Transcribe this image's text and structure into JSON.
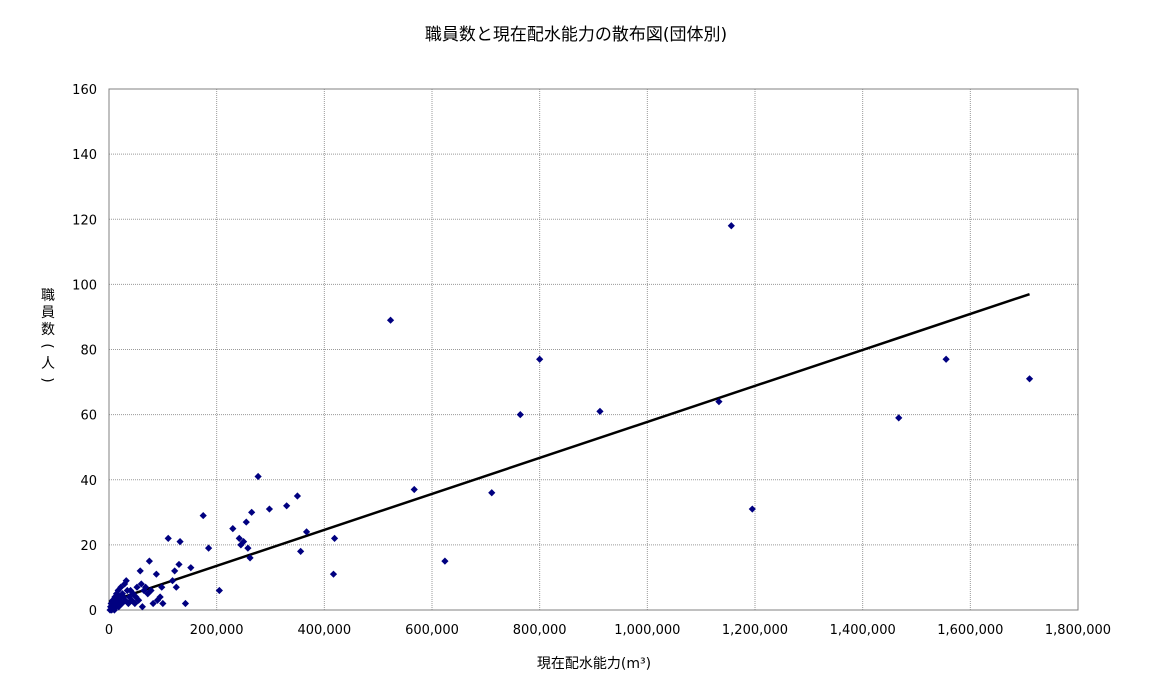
{
  "chart_data": {
    "type": "scatter",
    "title": "職員数と現在配水能力の散布図(団体別)",
    "xlabel": "現在配水能力(m³)",
    "ylabel": "職員数(人)",
    "xlim": [
      0,
      1800000
    ],
    "ylim": [
      0,
      160
    ],
    "x_ticks": [
      0,
      200000,
      400000,
      600000,
      800000,
      1000000,
      1200000,
      1400000,
      1600000,
      1800000
    ],
    "x_tick_labels": [
      "0",
      "200,000",
      "400,000",
      "600,000",
      "800,000",
      "1,000,000",
      "1,200,000",
      "1,400,000",
      "1,600,000",
      "1,800,000"
    ],
    "y_ticks": [
      0,
      20,
      40,
      60,
      80,
      100,
      120,
      140,
      160
    ],
    "y_tick_labels": [
      "0",
      "20",
      "40",
      "60",
      "80",
      "100",
      "120",
      "140",
      "160"
    ],
    "grid": true,
    "legend": "none",
    "marker_color": "#000080",
    "trendline_color": "#000000",
    "points": [
      {
        "x": 2000,
        "y": 0
      },
      {
        "x": 3000,
        "y": 1
      },
      {
        "x": 4000,
        "y": 2
      },
      {
        "x": 5000,
        "y": 0
      },
      {
        "x": 6000,
        "y": 1
      },
      {
        "x": 7000,
        "y": 3
      },
      {
        "x": 8000,
        "y": 1
      },
      {
        "x": 9000,
        "y": 2
      },
      {
        "x": 10000,
        "y": 0
      },
      {
        "x": 11000,
        "y": 4
      },
      {
        "x": 12000,
        "y": 2
      },
      {
        "x": 13000,
        "y": 1
      },
      {
        "x": 14000,
        "y": 5
      },
      {
        "x": 15000,
        "y": 3
      },
      {
        "x": 16000,
        "y": 2
      },
      {
        "x": 17000,
        "y": 6
      },
      {
        "x": 18000,
        "y": 1
      },
      {
        "x": 19000,
        "y": 4
      },
      {
        "x": 20000,
        "y": 3
      },
      {
        "x": 22000,
        "y": 7
      },
      {
        "x": 24000,
        "y": 2
      },
      {
        "x": 25000,
        "y": 5
      },
      {
        "x": 27000,
        "y": 4
      },
      {
        "x": 29000,
        "y": 8
      },
      {
        "x": 30000,
        "y": 3
      },
      {
        "x": 32000,
        "y": 9
      },
      {
        "x": 34000,
        "y": 6
      },
      {
        "x": 36000,
        "y": 2
      },
      {
        "x": 38000,
        "y": 4
      },
      {
        "x": 40000,
        "y": 6
      },
      {
        "x": 42000,
        "y": 3
      },
      {
        "x": 45000,
        "y": 5
      },
      {
        "x": 48000,
        "y": 2
      },
      {
        "x": 50000,
        "y": 4
      },
      {
        "x": 52000,
        "y": 7
      },
      {
        "x": 55000,
        "y": 3
      },
      {
        "x": 58000,
        "y": 12
      },
      {
        "x": 60000,
        "y": 8
      },
      {
        "x": 62000,
        "y": 1
      },
      {
        "x": 65000,
        "y": 6
      },
      {
        "x": 68000,
        "y": 7
      },
      {
        "x": 72000,
        "y": 5
      },
      {
        "x": 75000,
        "y": 15
      },
      {
        "x": 78000,
        "y": 6
      },
      {
        "x": 82000,
        "y": 2
      },
      {
        "x": 88000,
        "y": 11
      },
      {
        "x": 90000,
        "y": 3
      },
      {
        "x": 95000,
        "y": 4
      },
      {
        "x": 98000,
        "y": 7
      },
      {
        "x": 100000,
        "y": 2
      },
      {
        "x": 110000,
        "y": 22
      },
      {
        "x": 118000,
        "y": 9
      },
      {
        "x": 122000,
        "y": 12
      },
      {
        "x": 125000,
        "y": 7
      },
      {
        "x": 130000,
        "y": 14
      },
      {
        "x": 132000,
        "y": 21
      },
      {
        "x": 142000,
        "y": 2
      },
      {
        "x": 152000,
        "y": 13
      },
      {
        "x": 175000,
        "y": 29
      },
      {
        "x": 185000,
        "y": 19
      },
      {
        "x": 205000,
        "y": 6
      },
      {
        "x": 230000,
        "y": 25
      },
      {
        "x": 242000,
        "y": 22
      },
      {
        "x": 245000,
        "y": 20
      },
      {
        "x": 250000,
        "y": 21
      },
      {
        "x": 255000,
        "y": 27
      },
      {
        "x": 258000,
        "y": 19
      },
      {
        "x": 262000,
        "y": 16
      },
      {
        "x": 265000,
        "y": 30
      },
      {
        "x": 277000,
        "y": 41
      },
      {
        "x": 298000,
        "y": 31
      },
      {
        "x": 330000,
        "y": 32
      },
      {
        "x": 350000,
        "y": 35
      },
      {
        "x": 356000,
        "y": 18
      },
      {
        "x": 367000,
        "y": 24
      },
      {
        "x": 417000,
        "y": 11
      },
      {
        "x": 419000,
        "y": 22
      },
      {
        "x": 523000,
        "y": 89
      },
      {
        "x": 567000,
        "y": 37
      },
      {
        "x": 624000,
        "y": 15
      },
      {
        "x": 711000,
        "y": 36
      },
      {
        "x": 764000,
        "y": 60
      },
      {
        "x": 800000,
        "y": 77
      },
      {
        "x": 912000,
        "y": 61
      },
      {
        "x": 1133000,
        "y": 64
      },
      {
        "x": 1156000,
        "y": 118
      },
      {
        "x": 1195000,
        "y": 31
      },
      {
        "x": 1467000,
        "y": 59
      },
      {
        "x": 1555000,
        "y": 77
      },
      {
        "x": 1710000,
        "y": 71
      }
    ],
    "trendline": {
      "x": [
        0,
        1710000
      ],
      "y": [
        2.5,
        97
      ]
    }
  }
}
